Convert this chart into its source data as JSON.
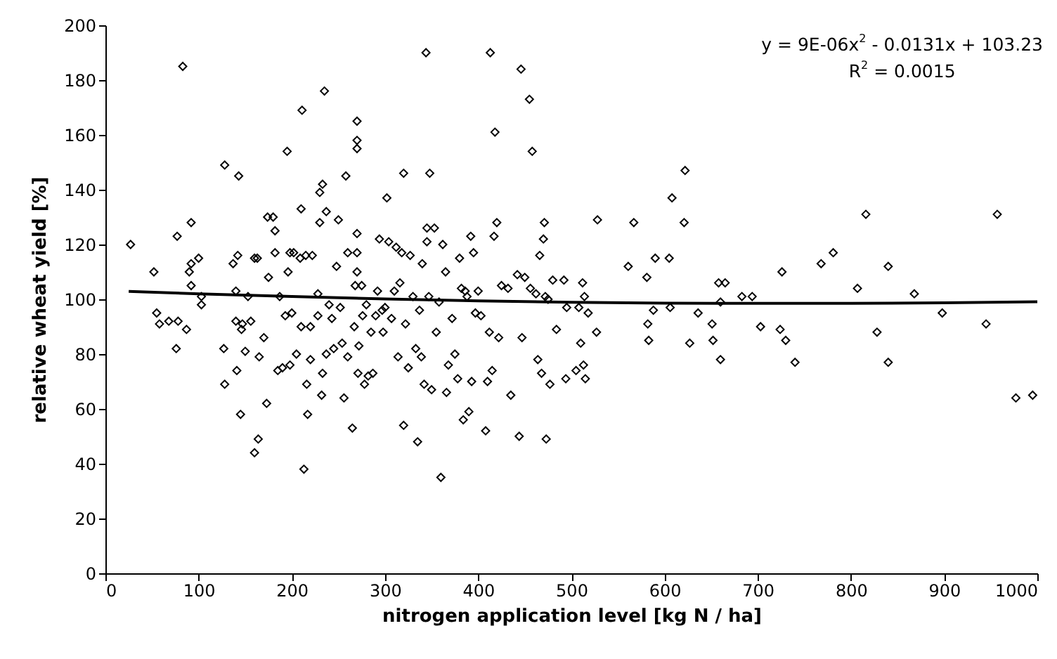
{
  "chart_data": {
    "type": "scatter",
    "xlabel": "nitrogen application level [kg N / ha]",
    "ylabel": "relative wheat yield [%]",
    "xlim": [
      0,
      1000
    ],
    "xticks": [
      0,
      100,
      200,
      300,
      400,
      500,
      600,
      700,
      800,
      900,
      1000
    ],
    "ylim": [
      0,
      200
    ],
    "yticks": [
      0,
      20,
      40,
      60,
      80,
      100,
      120,
      140,
      160,
      180,
      200
    ],
    "grid": false,
    "annotations": [
      "y = 9E-06x$^{2}$ - 0.0131x + 103.23",
      "R$^{2}$ = 0.0015"
    ],
    "series": [
      {
        "color": "#000000",
        "marker": "diamond",
        "x": [
          27,
          52,
          55,
          58,
          68,
          78,
          76,
          77,
          83,
          87,
          90,
          92,
          92,
          92,
          100,
          103,
          103,
          127,
          128,
          128,
          137,
          140,
          140,
          141,
          142,
          143,
          145,
          146,
          147,
          150,
          153,
          156,
          160,
          160,
          163,
          164,
          165,
          170,
          173,
          174,
          175,
          180,
          182,
          182,
          185,
          187,
          190,
          193,
          195,
          196,
          198,
          198,
          200,
          202,
          205,
          209,
          210,
          210,
          211,
          213,
          215,
          216,
          217,
          220,
          220,
          222,
          228,
          228,
          230,
          230,
          232,
          233,
          233,
          235,
          237,
          237,
          240,
          243,
          245,
          248,
          250,
          252,
          254,
          256,
          258,
          260,
          260,
          265,
          267,
          268,
          270,
          270,
          270,
          270,
          270,
          270,
          271,
          272,
          275,
          276,
          278,
          280,
          282,
          285,
          287,
          290,
          292,
          294,
          297,
          298,
          300,
          302,
          304,
          307,
          310,
          312,
          314,
          316,
          318,
          320,
          320,
          322,
          325,
          327,
          330,
          333,
          335,
          337,
          339,
          340,
          342,
          344,
          345,
          345,
          347,
          348,
          350,
          353,
          355,
          358,
          360,
          362,
          365,
          366,
          368,
          372,
          375,
          378,
          380,
          382,
          384,
          386,
          388,
          390,
          392,
          393,
          395,
          397,
          400,
          403,
          408,
          410,
          412,
          413,
          415,
          417,
          418,
          420,
          422,
          425,
          432,
          435,
          442,
          444,
          446,
          447,
          450,
          455,
          456,
          458,
          462,
          464,
          466,
          468,
          470,
          471,
          472,
          473,
          475,
          477,
          480,
          484,
          492,
          494,
          495,
          505,
          508,
          510,
          512,
          513,
          514,
          515,
          518,
          527,
          528,
          561,
          567,
          581,
          582,
          583,
          588,
          590,
          605,
          606,
          608,
          621,
          622,
          627,
          636,
          651,
          652,
          658,
          660,
          660,
          665,
          683,
          694,
          703,
          724,
          726,
          730,
          740,
          768,
          781,
          807,
          816,
          828,
          840,
          840,
          868,
          898,
          945,
          957,
          977,
          995
        ],
        "values": [
          120,
          110,
          95,
          91,
          92,
          92,
          82,
          123,
          185,
          89,
          110,
          128,
          105,
          113,
          115,
          101,
          98,
          82,
          69,
          149,
          113,
          103,
          92,
          74,
          116,
          145,
          58,
          89,
          91,
          81,
          101,
          92,
          115,
          44,
          115,
          49,
          79,
          86,
          62,
          130,
          108,
          130,
          125,
          117,
          74,
          101,
          75,
          94,
          154,
          110,
          76,
          117,
          95,
          117,
          80,
          115,
          90,
          133,
          169,
          38,
          116,
          69,
          58,
          78,
          90,
          116,
          94,
          102,
          128,
          139,
          65,
          142,
          73,
          176,
          132,
          80,
          98,
          93,
          82,
          112,
          129,
          97,
          84,
          64,
          145,
          117,
          79,
          53,
          90,
          105,
          155,
          158,
          165,
          124,
          117,
          110,
          73,
          83,
          105,
          94,
          69,
          98,
          72,
          88,
          73,
          94,
          103,
          122,
          96,
          88,
          97,
          137,
          121,
          93,
          103,
          119,
          79,
          106,
          117,
          54,
          146,
          91,
          75,
          116,
          101,
          82,
          48,
          96,
          79,
          113,
          69,
          190,
          126,
          121,
          101,
          146,
          67,
          126,
          88,
          99,
          35,
          120,
          110,
          66,
          76,
          93,
          80,
          71,
          115,
          104,
          56,
          103,
          101,
          59,
          123,
          70,
          117,
          95,
          103,
          94,
          52,
          70,
          88,
          190,
          74,
          123,
          161,
          128,
          86,
          105,
          104,
          65,
          109,
          50,
          184,
          86,
          108,
          173,
          104,
          154,
          102,
          78,
          116,
          73,
          122,
          128,
          101,
          49,
          100,
          69,
          107,
          89,
          107,
          71,
          97,
          74,
          97,
          84,
          106,
          76,
          101,
          71,
          95,
          88,
          129,
          112,
          128,
          108,
          91,
          85,
          96,
          115,
          115,
          97,
          137,
          128,
          147,
          84,
          95,
          91,
          85,
          106,
          78,
          99,
          106,
          101,
          101,
          90,
          89,
          110,
          85,
          77,
          113,
          117,
          104,
          131,
          88,
          112,
          77,
          102,
          95,
          91,
          131,
          64,
          65
        ]
      },
      {
        "type": "line",
        "color": "#000000",
        "line_style": "solid",
        "x": [
          25,
          100,
          200,
          300,
          400,
          500,
          600,
          700,
          800,
          900,
          1000
        ],
        "values": [
          102.9,
          102.0,
          101.0,
          100.1,
          99.4,
          98.9,
          98.6,
          98.5,
          98.5,
          98.7,
          99.1
        ]
      }
    ]
  }
}
